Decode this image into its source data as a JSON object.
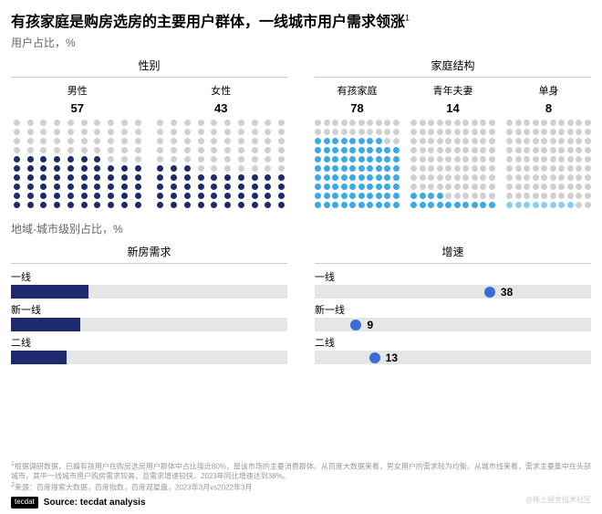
{
  "title": "有孩家庭是购房选房的主要用户群体，一线城市用户需求领涨",
  "title_sup": "1",
  "subtitle": "用户占比，%",
  "colors": {
    "dark_navy": "#1d2a6b",
    "sky_blue": "#39a9e8",
    "light_blue": "#87cfef",
    "grey_dot": "#d0d0d0",
    "bar_track": "#e6e6e6",
    "bar_fill": "#1d2a6b",
    "lollipop": "#3a6cd8"
  },
  "dot_grid": {
    "rows": 10,
    "cols": 10
  },
  "gender_panel": {
    "header": "性别",
    "groups": [
      {
        "label": "男性",
        "value": 57,
        "fill_color": "#1d2a6b"
      },
      {
        "label": "女性",
        "value": 43,
        "fill_color": "#1d2a6b"
      }
    ]
  },
  "family_panel": {
    "header": "家庭结构",
    "groups": [
      {
        "label": "有孩家庭",
        "value": 78,
        "fill_color": "#39a9e8"
      },
      {
        "label": "青年夫妻",
        "value": 14,
        "fill_color": "#39a9e8"
      },
      {
        "label": "单身",
        "value": 8,
        "fill_color": "#87cfef"
      }
    ]
  },
  "region_section_title": "地域-城市级别占比，%",
  "demand_panel": {
    "header": "新房需求",
    "max": 100,
    "rows": [
      {
        "label": "一线",
        "value": 28,
        "fill_color": "#1d2a6b"
      },
      {
        "label": "新一线",
        "value": 25,
        "fill_color": "#1d2a6b"
      },
      {
        "label": "二线",
        "value": 20,
        "fill_color": "#1d2a6b"
      }
    ]
  },
  "growth_panel": {
    "header": "增速",
    "max": 60,
    "rows": [
      {
        "label": "一线",
        "value": 38,
        "dot_color": "#3a6cd8"
      },
      {
        "label": "新一线",
        "value": 9,
        "dot_color": "#3a6cd8"
      },
      {
        "label": "二线",
        "value": 13,
        "dot_color": "#3a6cd8"
      }
    ]
  },
  "footnote1_sup": "1",
  "footnote1": "根据调研数据，已婚有孩用户在购房选房用户群体中占比接近80%，是该市场的主要消费群体。从百度大数据来看，男女用户的需求较为均衡。从城市线来看，需求主要集中在头部城市，其中一线城市用户购房需求较高，且需求增速较快，2023年同比增速达到38%。",
  "footnote2_sup": "2",
  "footnote2": "来源：百度搜索大数据，百度指数，百度观星盘，2023年3月vs2022年3月",
  "tecdat_badge": "tecdat",
  "source": "Source: tecdat analysis",
  "watermark": "@稀土掘金技术社区"
}
